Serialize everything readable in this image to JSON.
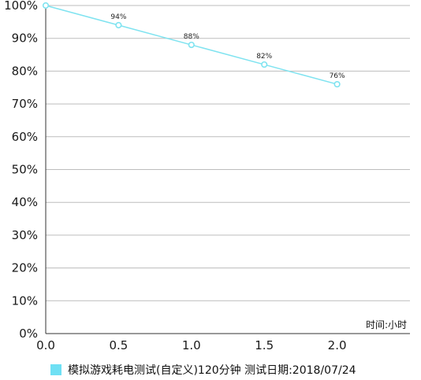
{
  "chart_data": {
    "type": "line",
    "title": "",
    "xlabel": "",
    "ylabel": "",
    "x_unit_label": "时间:小时",
    "x": [
      0,
      0.5,
      1.0,
      1.5,
      2.0
    ],
    "x_tick_labels": [
      "0.0",
      "0.5",
      "1.0",
      "1.5",
      "2.0"
    ],
    "y_tick_labels": [
      "0%",
      "10%",
      "20%",
      "30%",
      "40%",
      "50%",
      "60%",
      "70%",
      "80%",
      "90%",
      "100%"
    ],
    "xlim": [
      0,
      2.5
    ],
    "ylim": [
      0,
      100
    ],
    "grid": "horizontal",
    "legend_position": "bottom",
    "series": [
      {
        "name": "模拟游戏耗电测试(自定义)120分钟   测试日期:2018/07/24",
        "values": [
          100,
          94,
          88,
          82,
          76
        ],
        "data_labels": [
          "",
          "94%",
          "88%",
          "82%",
          "76%"
        ],
        "color": "#7fe3f0"
      }
    ],
    "colors": {
      "line": "#7fe3f0",
      "marker_fill": "#ffffff",
      "grid": "#bdbdbd",
      "axis": "#333333",
      "legend_swatch": "#6fe0f4"
    }
  }
}
